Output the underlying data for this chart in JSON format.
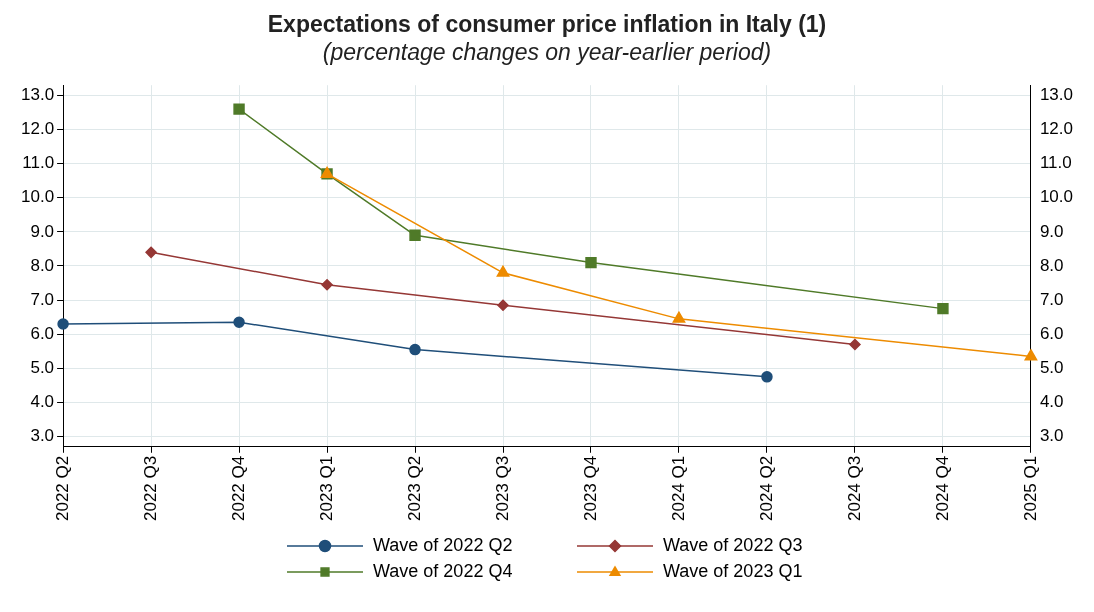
{
  "chart_data": {
    "type": "line",
    "title": "Expectations of consumer price inflation in Italy (1)",
    "subtitle": "(percentage changes on year-earlier period)",
    "categories": [
      "2022 Q2",
      "2022 Q3",
      "2022 Q4",
      "2023 Q1",
      "2023 Q2",
      "2023 Q3",
      "2023 Q4",
      "2024 Q1",
      "2024 Q2",
      "2024 Q3",
      "2024 Q4",
      "2025 Q1"
    ],
    "series": [
      {
        "name": "Wave of 2022 Q2",
        "color": "#1f4e79",
        "marker": "circle",
        "values": [
          6.3,
          null,
          6.35,
          null,
          5.55,
          null,
          null,
          null,
          4.75,
          null,
          null,
          null
        ]
      },
      {
        "name": "Wave of 2022 Q3",
        "color": "#953735",
        "marker": "diamond",
        "values": [
          null,
          8.4,
          null,
          7.45,
          null,
          6.85,
          null,
          null,
          null,
          5.7,
          null,
          null
        ]
      },
      {
        "name": "Wave of 2022 Q4",
        "color": "#4f7a28",
        "marker": "square",
        "values": [
          null,
          null,
          12.6,
          10.7,
          8.9,
          null,
          8.1,
          null,
          null,
          null,
          6.75,
          null
        ]
      },
      {
        "name": "Wave of 2023 Q1",
        "color": "#ed8b00",
        "marker": "triangle",
        "values": [
          null,
          null,
          null,
          10.7,
          null,
          7.8,
          null,
          6.45,
          null,
          null,
          null,
          5.35
        ]
      }
    ],
    "ylim": [
      2.7,
      13.3
    ],
    "yticks": [
      {
        "value": 3,
        "label": "3.0"
      },
      {
        "value": 4,
        "label": "4.0"
      },
      {
        "value": 5,
        "label": "5.0"
      },
      {
        "value": 6,
        "label": "6.0"
      },
      {
        "value": 7,
        "label": "7.0"
      },
      {
        "value": 8,
        "label": "8.0"
      },
      {
        "value": 9,
        "label": "9.0"
      },
      {
        "value": 10,
        "label": "10.0"
      },
      {
        "value": 11,
        "label": "11.0"
      },
      {
        "value": 12,
        "label": "12.0"
      },
      {
        "value": 13,
        "label": "13.0"
      }
    ],
    "y2lim": [
      2.7,
      13.3
    ],
    "y2ticks": [
      {
        "value": 3,
        "label": "3.0"
      },
      {
        "value": 4,
        "label": "4.0"
      },
      {
        "value": 5,
        "label": "5.0"
      },
      {
        "value": 6,
        "label": "6.0"
      },
      {
        "value": 7,
        "label": "7.0"
      },
      {
        "value": 8,
        "label": "8.0"
      },
      {
        "value": 9,
        "label": "9.0"
      },
      {
        "value": 10,
        "label": "10.0"
      },
      {
        "value": 11,
        "label": "11.0"
      },
      {
        "value": 12,
        "label": "12.0"
      },
      {
        "value": 13,
        "label": "13.0"
      }
    ],
    "grid": true,
    "legend": "bottom",
    "line_style": "solid"
  }
}
